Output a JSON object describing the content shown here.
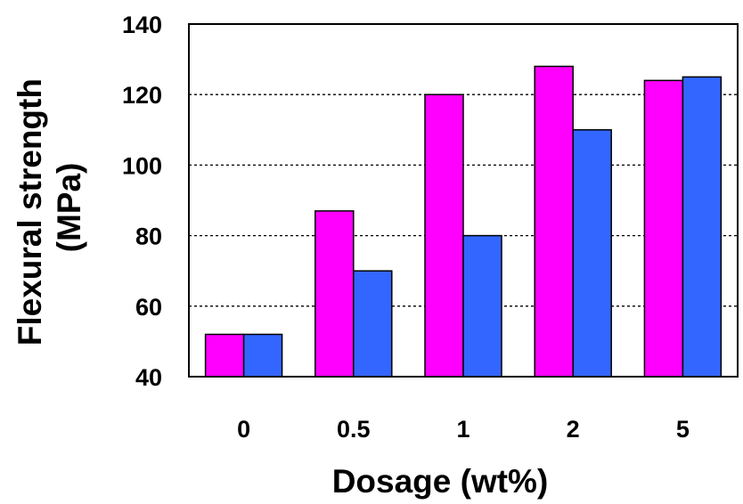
{
  "chart_data": {
    "type": "bar",
    "categories": [
      "0",
      "0.5",
      "1",
      "2",
      "5"
    ],
    "series": [
      {
        "color": "#ff00ff",
        "values": [
          52,
          87,
          120,
          128,
          124
        ]
      },
      {
        "color": "#3366ff",
        "values": [
          52,
          70,
          80,
          110,
          125
        ]
      }
    ],
    "xlabel": "Dosage (wt%)",
    "ylabel_lines": [
      "Flexural strength",
      "(MPa)"
    ],
    "ylim": [
      40,
      140
    ],
    "yticks": [
      "40",
      "60",
      "80",
      "100",
      "120",
      "140"
    ],
    "grid": "horizontal dotted"
  }
}
